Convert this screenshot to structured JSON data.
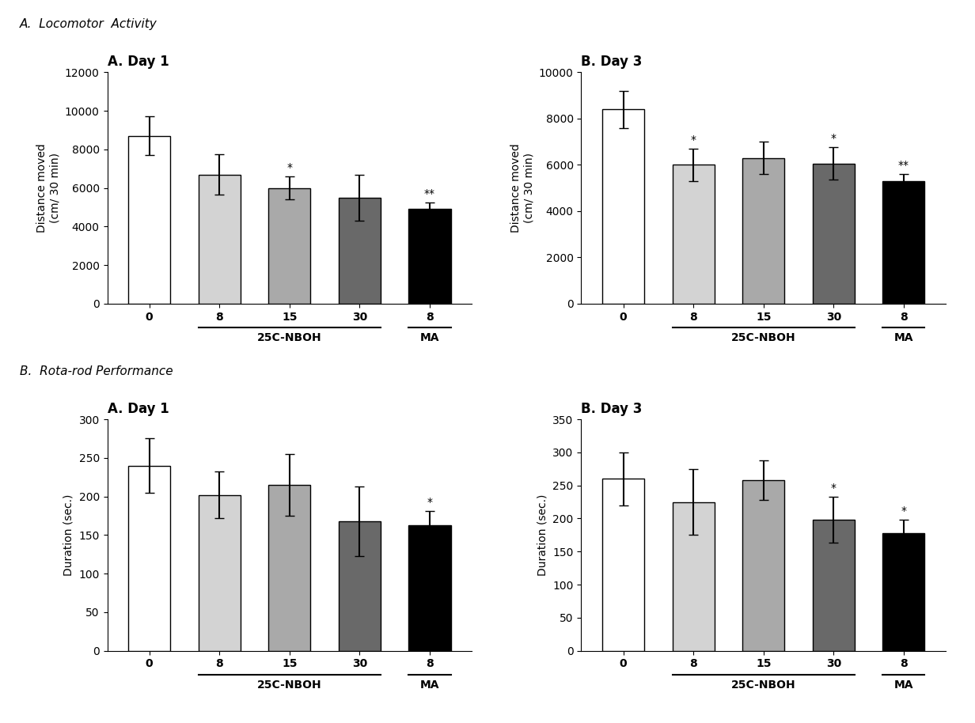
{
  "chart_data": [
    {
      "type": "bar",
      "section": "A.  Locomotor  Activity",
      "title": "A. Day 1",
      "ylabel": "Distance moved\n(cm/ 30 min)",
      "categories": [
        "0",
        "8",
        "15",
        "30",
        "8"
      ],
      "values": [
        8700,
        6700,
        6000,
        5500,
        4900
      ],
      "errors": [
        1000,
        1050,
        600,
        1200,
        350
      ],
      "annotations": [
        "",
        "",
        "*",
        "",
        "**"
      ],
      "colors": [
        "#ffffff",
        "#d3d3d3",
        "#a9a9a9",
        "#696969",
        "#000000"
      ],
      "groups": [
        {
          "label": "25C-NBOH",
          "start": 1,
          "end": 3
        },
        {
          "label": "MA",
          "start": 4,
          "end": 4
        }
      ],
      "ylim": [
        0,
        12000
      ],
      "yticks": [
        0,
        2000,
        4000,
        6000,
        8000,
        10000,
        12000
      ]
    },
    {
      "type": "bar",
      "section": "A.  Locomotor  Activity",
      "title": "B. Day 3",
      "ylabel": "Distance moved\n(cm/ 30 min)",
      "categories": [
        "0",
        "8",
        "15",
        "30",
        "8"
      ],
      "values": [
        8400,
        6000,
        6300,
        6050,
        5300
      ],
      "errors": [
        800,
        700,
        700,
        700,
        300
      ],
      "annotations": [
        "",
        "*",
        "",
        "*",
        "**"
      ],
      "colors": [
        "#ffffff",
        "#d3d3d3",
        "#a9a9a9",
        "#696969",
        "#000000"
      ],
      "groups": [
        {
          "label": "25C-NBOH",
          "start": 1,
          "end": 3
        },
        {
          "label": "MA",
          "start": 4,
          "end": 4
        }
      ],
      "ylim": [
        0,
        10000
      ],
      "yticks": [
        0,
        2000,
        4000,
        6000,
        8000,
        10000
      ]
    },
    {
      "type": "bar",
      "section": "B.  Rota-rod Performance",
      "title": "A. Day 1",
      "ylabel": "Duration (sec.)",
      "categories": [
        "0",
        "8",
        "15",
        "30",
        "8"
      ],
      "values": [
        240,
        202,
        215,
        168,
        163
      ],
      "errors": [
        35,
        30,
        40,
        45,
        18
      ],
      "annotations": [
        "",
        "",
        "",
        "",
        "*"
      ],
      "colors": [
        "#ffffff",
        "#d3d3d3",
        "#a9a9a9",
        "#696969",
        "#000000"
      ],
      "groups": [
        {
          "label": "25C-NBOH",
          "start": 1,
          "end": 3
        },
        {
          "label": "MA",
          "start": 4,
          "end": 4
        }
      ],
      "ylim": [
        0,
        300
      ],
      "yticks": [
        0,
        50,
        100,
        150,
        200,
        250,
        300
      ]
    },
    {
      "type": "bar",
      "section": "B.  Rota-rod Performance",
      "title": "B. Day 3",
      "ylabel": "Duration (sec.)",
      "categories": [
        "0",
        "8",
        "15",
        "30",
        "8"
      ],
      "values": [
        260,
        225,
        258,
        198,
        178
      ],
      "errors": [
        40,
        50,
        30,
        35,
        20
      ],
      "annotations": [
        "",
        "",
        "",
        "*",
        "*"
      ],
      "colors": [
        "#ffffff",
        "#d3d3d3",
        "#a9a9a9",
        "#696969",
        "#000000"
      ],
      "groups": [
        {
          "label": "25C-NBOH",
          "start": 1,
          "end": 3
        },
        {
          "label": "MA",
          "start": 4,
          "end": 4
        }
      ],
      "ylim": [
        0,
        350
      ],
      "yticks": [
        0,
        50,
        100,
        150,
        200,
        250,
        300,
        350
      ]
    }
  ]
}
